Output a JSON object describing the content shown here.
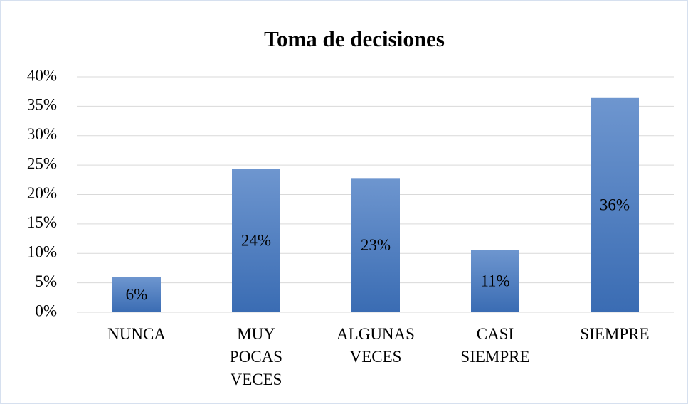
{
  "chart_data": {
    "type": "bar",
    "title": "Toma de decisiones",
    "categories": [
      "NUNCA",
      "MUY POCAS VECES",
      "ALGUNAS VECES",
      "CASI SIEMPRE",
      "SIEMPRE"
    ],
    "values": [
      6.0,
      24.3,
      22.8,
      10.6,
      36.4
    ],
    "value_labels": [
      "6%",
      "24%",
      "23%",
      "11%",
      "36%"
    ],
    "color": "#4a7cc0",
    "ylim": [
      0,
      40
    ],
    "yticks": [
      {
        "value": 0,
        "label": "0%"
      },
      {
        "value": 5,
        "label": "5%"
      },
      {
        "value": 10,
        "label": "10%"
      },
      {
        "value": 15,
        "label": "15%"
      },
      {
        "value": 20,
        "label": "20%"
      },
      {
        "value": 25,
        "label": "25%"
      },
      {
        "value": 30,
        "label": "30%"
      },
      {
        "value": 35,
        "label": "35%"
      },
      {
        "value": 40,
        "label": "40%"
      }
    ],
    "grid": true
  }
}
